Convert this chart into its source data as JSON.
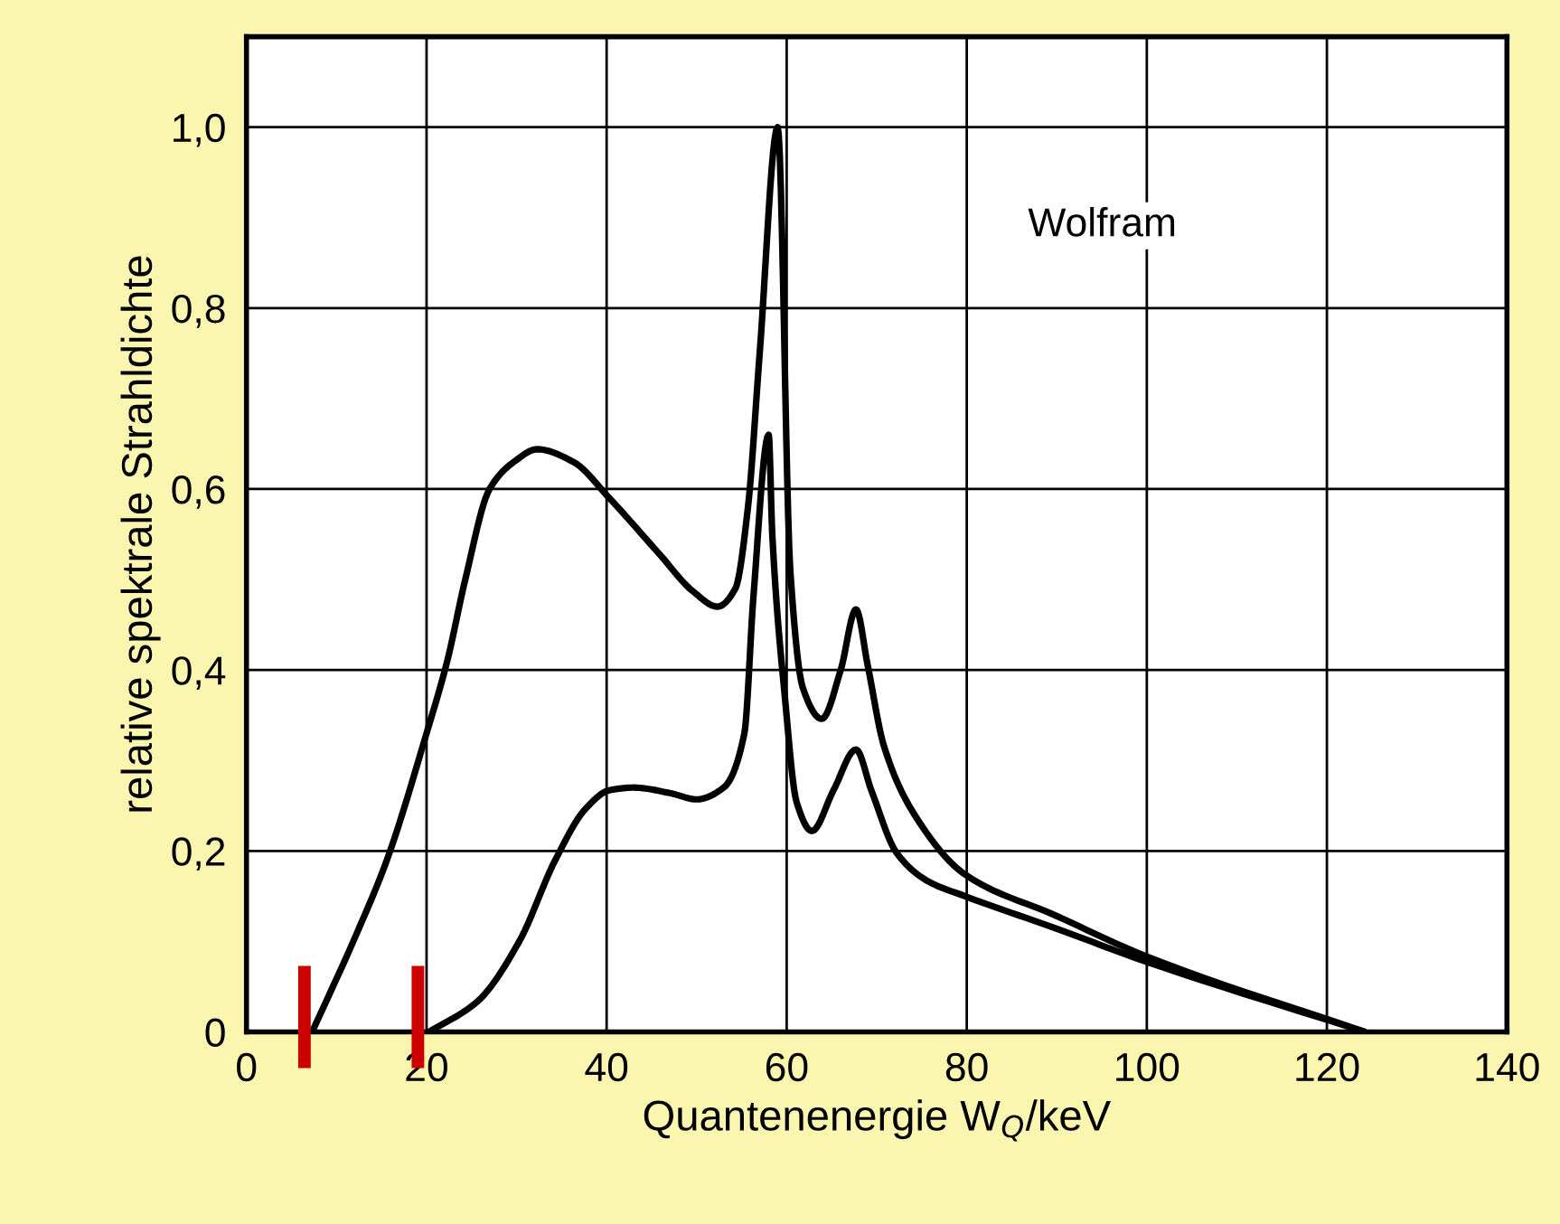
{
  "chart_data": {
    "type": "line",
    "xlabel": "Quantenenergie W$_{Q}$/keV",
    "ylabel": "relative spektrale Strahldichte",
    "annotations": [
      "Wolfram"
    ],
    "series": [
      {
        "color": "#000000",
        "x": [
          7.3,
          12.3,
          15.6,
          20,
          22.3,
          24.3,
          27,
          29.7,
          32.3,
          36.3,
          40.3,
          45.7,
          49.7,
          52.3,
          54.3,
          55.7,
          57,
          59,
          60.4,
          61.8,
          63.9,
          66,
          67.7,
          69,
          70.8,
          74.2,
          79.8,
          90,
          99.8,
          124.2
        ],
        "values": [
          0,
          0.11,
          0.19,
          0.33,
          0.41,
          0.5,
          0.6,
          0.63,
          0.644,
          0.63,
          0.59,
          0.53,
          0.486,
          0.47,
          0.49,
          0.58,
          0.75,
          1.0,
          0.51,
          0.38,
          0.346,
          0.4,
          0.467,
          0.405,
          0.316,
          0.24,
          0.174,
          0.128,
          0.084,
          0
        ]
      },
      {
        "color": "#000000",
        "x": [
          20.3,
          25.7,
          30.3,
          34.3,
          37.7,
          40.3,
          43,
          47,
          50,
          53,
          55.3,
          56.3,
          58,
          58.4,
          59.8,
          61.1,
          62.8,
          65.2,
          67.7,
          69.4,
          72.2,
          75.6,
          79.8,
          90,
          99.8,
          124.2
        ],
        "values": [
          0,
          0.034,
          0.1,
          0.19,
          0.247,
          0.267,
          0.27,
          0.264,
          0.257,
          0.27,
          0.33,
          0.48,
          0.66,
          0.55,
          0.37,
          0.254,
          0.222,
          0.267,
          0.312,
          0.267,
          0.198,
          0.167,
          0.15,
          0.114,
          0.078,
          0
        ]
      }
    ],
    "xlim": [
      0,
      140
    ],
    "xticks": [
      0,
      20,
      40,
      60,
      80,
      100,
      120,
      140
    ],
    "ylim": [
      0,
      1.1
    ],
    "yticks": [
      {
        "value": 0,
        "label": "0"
      },
      {
        "value": 0.2,
        "label": "0,2"
      },
      {
        "value": 0.4,
        "label": "0,4"
      },
      {
        "value": 0.6,
        "label": "0,6"
      },
      {
        "value": 0.8,
        "label": "0,8"
      },
      {
        "value": 1.0,
        "label": "1,0"
      }
    ],
    "grid": true
  }
}
